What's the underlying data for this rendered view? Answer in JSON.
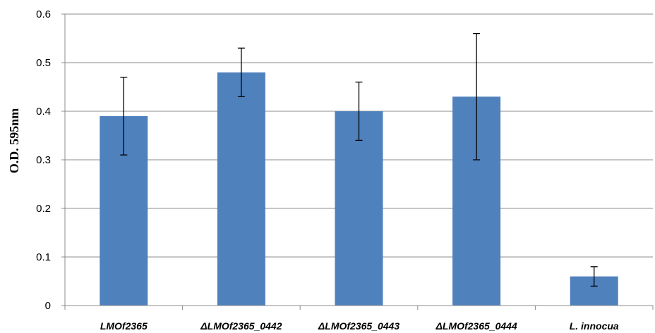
{
  "chart_data": {
    "type": "bar",
    "title": "",
    "xlabel": "",
    "ylabel": "O.D. 595nm",
    "ylim": [
      0,
      0.6
    ],
    "yticks": [
      "0",
      "0.1",
      "0.2",
      "0.3",
      "0.4",
      "0.5",
      "0.6"
    ],
    "grid": true,
    "legend": "none",
    "bar_color": "#4f81bd",
    "categories": [
      "LMOf2365",
      "ΔLMOf2365_0442",
      "ΔLMOf2365_0443",
      "ΔLMOf2365_0444",
      "L. innocua"
    ],
    "values": [
      0.39,
      0.48,
      0.4,
      0.43,
      0.06
    ],
    "error_low": [
      0.31,
      0.43,
      0.34,
      0.3,
      0.04
    ],
    "error_high": [
      0.47,
      0.53,
      0.46,
      0.56,
      0.08
    ]
  }
}
